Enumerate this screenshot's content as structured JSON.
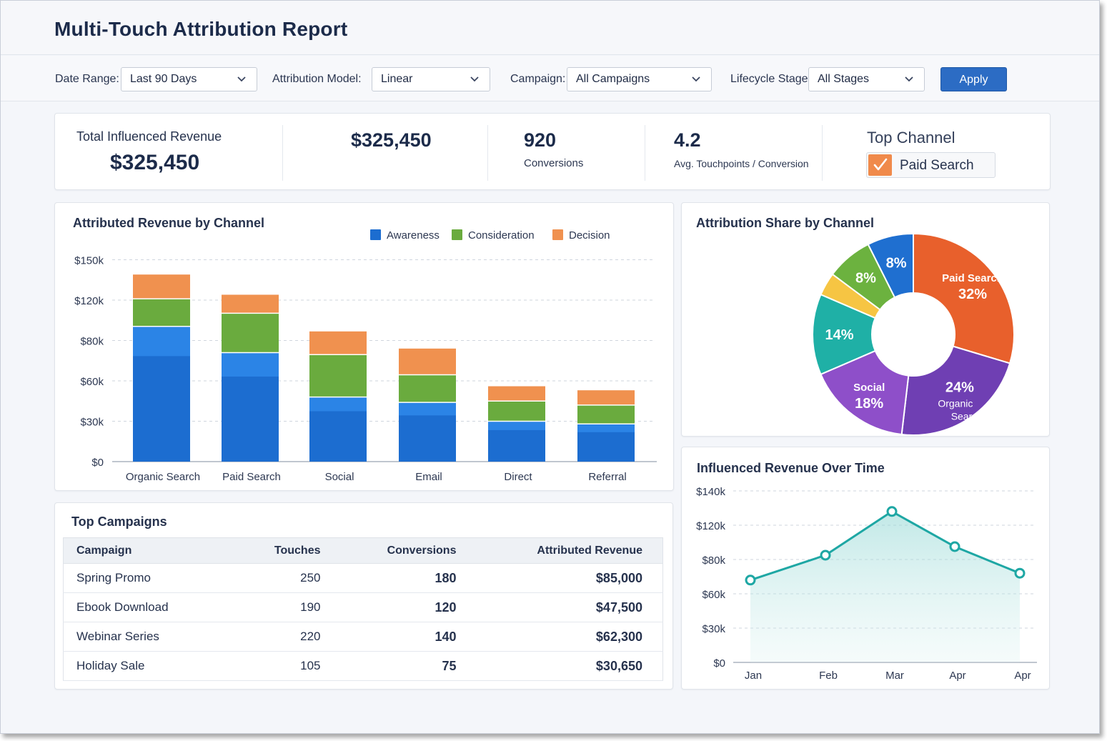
{
  "page": {
    "title": "Multi-Touch Attribution Report"
  },
  "filters": {
    "date_range": {
      "label": "Date Range:",
      "value": "Last 90 Days"
    },
    "attribution_model": {
      "label": "Attribution Model:",
      "value": "Linear"
    },
    "campaign": {
      "label": "Campaign:",
      "value": "All Campaigns"
    },
    "lifecycle_stage": {
      "label": "Lifecycle Stage:",
      "value": "All Stages"
    },
    "apply_label": "Apply"
  },
  "kpis": {
    "total_label": "Total Influenced Revenue",
    "total_value": "$325,450",
    "revenue_value": "$325,450",
    "conversions_value": "920",
    "conversions_label": "Conversions",
    "touchpoints_value": "4.2",
    "touchpoints_label": "Avg. Touchpoints / Conversion",
    "top_channel_label": "Top Channel",
    "top_channel_value": "Paid Search"
  },
  "colors": {
    "awareness": "#1c6dd0",
    "awareness_top": "#2b84e6",
    "consideration": "#6aab3e",
    "decision": "#f0914f",
    "accent": "#2c6cc4",
    "line": "#1ea7a4"
  },
  "chart_data": [
    {
      "type": "bar",
      "stacked": true,
      "title": "Attributed Revenue by Channel",
      "categories": [
        "Organic Search",
        "Paid Search",
        "Social",
        "Email",
        "Direct",
        "Referral"
      ],
      "series": [
        {
          "name": "Awareness",
          "values": [
            94,
            74,
            48,
            44,
            30,
            28
          ]
        },
        {
          "name": "Consideration",
          "values": [
            27,
            33,
            25,
            19,
            15,
            14
          ]
        },
        {
          "name": "Decision",
          "values": [
            18,
            17,
            16,
            13,
            11,
            11
          ]
        }
      ],
      "y_ticks": [
        "$0",
        "$30k",
        "$60k",
        "$80k",
        "$120k",
        "$150k"
      ],
      "legend": "top-right",
      "grid": true
    },
    {
      "type": "pie",
      "donut": true,
      "title": "Attribution Share by Channel",
      "slices": [
        {
          "label": "Paid Search",
          "value": 32,
          "display": "32%",
          "color": "#e8602c"
        },
        {
          "label": "Organic Search",
          "value": 24,
          "display": "24%",
          "color": "#6f3fb3"
        },
        {
          "label": "Social",
          "value": 18,
          "display": "18%",
          "color": "#8e4fc9"
        },
        {
          "label": "",
          "value": 14,
          "display": "14%",
          "color": "#1fb0a6"
        },
        {
          "label": "",
          "value": 4,
          "display": "",
          "color": "#f6c543"
        },
        {
          "label": "",
          "value": 8,
          "display": "8%",
          "color": "#6cb23f"
        },
        {
          "label": "",
          "value": 8,
          "display": "8%",
          "color": "#1f6fd0"
        }
      ]
    },
    {
      "type": "area",
      "title": "Influenced Revenue Over Time",
      "x": [
        "Jan",
        "Feb",
        "Mar",
        "Apr",
        "Apr"
      ],
      "values": [
        68,
        85,
        128,
        95,
        72
      ],
      "y_ticks": [
        "$0",
        "$30k",
        "$60k",
        "$80k",
        "$120k",
        "$140k"
      ],
      "grid": true
    }
  ],
  "campaigns": {
    "title": "Top Campaigns",
    "headers": [
      "Campaign",
      "Touches",
      "Conversions",
      "Attributed Revenue"
    ],
    "rows": [
      [
        "Spring Promo",
        "250",
        "180",
        "$85,000"
      ],
      [
        "Ebook Download",
        "190",
        "120",
        "$47,500"
      ],
      [
        "Webinar Series",
        "220",
        "140",
        "$62,300"
      ],
      [
        "Holiday Sale",
        "105",
        "75",
        "$30,650"
      ]
    ]
  }
}
